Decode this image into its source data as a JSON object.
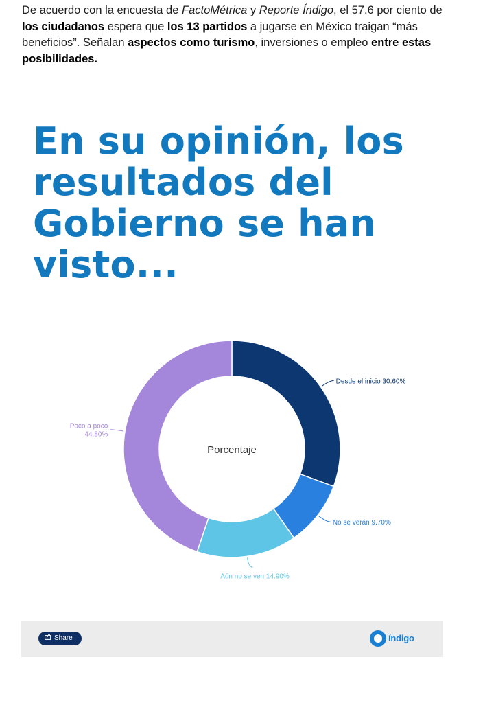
{
  "intro": {
    "t1": "De acuerdo con la encuesta de ",
    "t2": "FactoMétrica",
    "t3": " y ",
    "t4": "Reporte Índigo",
    "t5": ", el 57.6 por ciento de ",
    "t6": "los ciudadanos",
    "t7": " espera que ",
    "t8": "los 13 partidos",
    "t9": " a jugarse en México traigan “más beneficios”. Señalan ",
    "t10": "aspectos como turismo",
    "t11": ", inversiones o empleo ",
    "t12": "entre estas posibilidades."
  },
  "headline": "En su opinión, los resultados del Gobierno se han visto...",
  "chart_data": {
    "type": "pie",
    "donut": true,
    "center_label": "Porcentaje",
    "start": "top, clockwise",
    "slices": [
      {
        "label": "Desde el inicio",
        "value": 30.6,
        "value_text": "30.60%",
        "color": "#0c3770"
      },
      {
        "label": "No se verán",
        "value": 9.7,
        "value_text": "9.70%",
        "color": "#2a80df"
      },
      {
        "label": "Aún no se ven",
        "value": 14.9,
        "value_text": "14.90%",
        "color": "#5fc5e6"
      },
      {
        "label": "Poco a poco",
        "value": 44.8,
        "value_text": "44.80%",
        "color": "#a487db"
      }
    ]
  },
  "footer": {
    "share_label": "Share",
    "logo_text": "índigo",
    "brand_color": "#1a7fd0"
  }
}
